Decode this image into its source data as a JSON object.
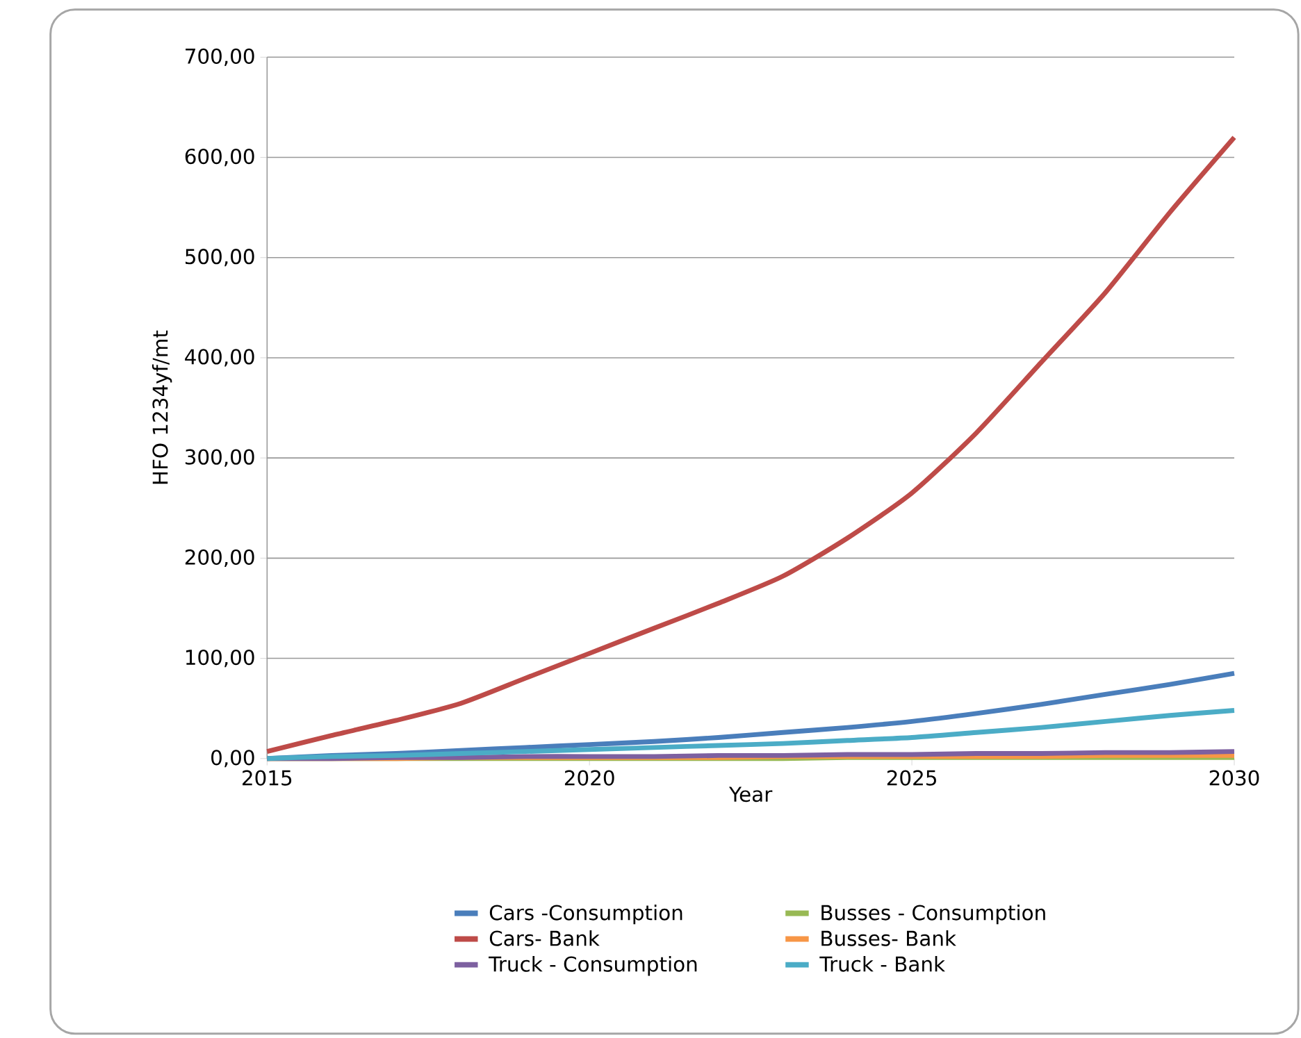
{
  "chart_data": {
    "type": "line",
    "xlabel": "Year",
    "ylabel": "HFO 1234yf/mt",
    "x": [
      2015,
      2016,
      2017,
      2018,
      2019,
      2020,
      2021,
      2022,
      2023,
      2024,
      2025,
      2026,
      2027,
      2028,
      2029,
      2030
    ],
    "series": [
      {
        "name": "Cars -Consumption",
        "color": "#4a7ebb",
        "values": [
          0,
          3,
          5,
          8,
          11,
          14,
          17,
          21,
          26,
          31,
          37,
          45,
          54,
          64,
          74,
          85
        ]
      },
      {
        "name": "Busses - Consumption",
        "color": "#98b954",
        "values": [
          0,
          0,
          0,
          0,
          0,
          0,
          0,
          0,
          0,
          1,
          1,
          1,
          1,
          1,
          1,
          1
        ]
      },
      {
        "name": "Cars- Bank",
        "color": "#be4b48",
        "values": [
          7,
          23,
          38,
          55,
          80,
          105,
          130,
          155,
          182,
          220,
          265,
          325,
          395,
          465,
          545,
          620
        ]
      },
      {
        "name": "Busses- Bank",
        "color": "#f79646",
        "values": [
          0,
          0,
          0,
          1,
          1,
          1,
          1,
          1,
          2,
          2,
          2,
          2,
          2,
          3,
          3,
          3
        ]
      },
      {
        "name": "Truck - Consumption",
        "color": "#7d60a0",
        "values": [
          0,
          0,
          1,
          1,
          2,
          2,
          2,
          3,
          3,
          4,
          4,
          5,
          5,
          6,
          6,
          7
        ]
      },
      {
        "name": "Truck - Bank",
        "color": "#4bacc6",
        "values": [
          0,
          2,
          3,
          5,
          7,
          9,
          11,
          13,
          15,
          18,
          21,
          26,
          31,
          37,
          43,
          48
        ]
      }
    ],
    "xlim": [
      2015,
      2030
    ],
    "xticks": [
      2015,
      2020,
      2025,
      2030
    ],
    "ylim": [
      0,
      700
    ],
    "yticks": [
      {
        "value": 0,
        "label": "0,00"
      },
      {
        "value": 100,
        "label": "100,00"
      },
      {
        "value": 200,
        "label": "200,00"
      },
      {
        "value": 300,
        "label": "300,00"
      },
      {
        "value": 400,
        "label": "400,00"
      },
      {
        "value": 500,
        "label": "500,00"
      },
      {
        "value": 600,
        "label": "600,00"
      },
      {
        "value": 700,
        "label": "700,00"
      }
    ],
    "grid": "y",
    "legend": "bottom",
    "marker": "none",
    "line_style": "solid"
  }
}
